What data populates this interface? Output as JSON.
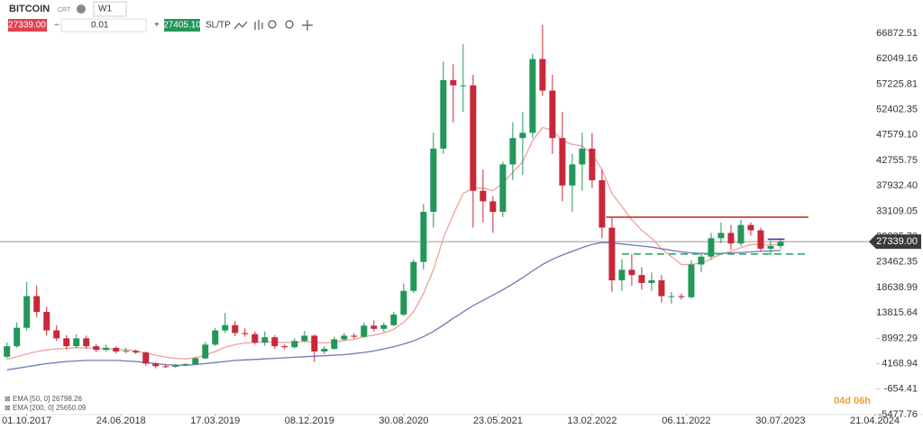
{
  "toolbar": {
    "symbol": "BITCOIN",
    "symbol_type": "CRT",
    "timeframe": "W1",
    "volume": "0.01",
    "ask": "27405.10",
    "sl_tp": "SL/TP"
  },
  "countdown": "04d 06h",
  "chart_data": {
    "type": "candlestick",
    "up_color": "#23965a",
    "down_color": "#c8283a",
    "open": [
      5500,
      7500,
      11000,
      17000,
      14000,
      10500,
      9000,
      7500,
      9000,
      7500,
      6800,
      7200,
      6500,
      6600,
      6300,
      4200,
      3700,
      3600,
      3900,
      4100,
      5200,
      7800,
      10500,
      11500,
      10000,
      9800,
      8200,
      9200,
      7500,
      7300,
      8500,
      9500,
      6500,
      7000,
      8800,
      9500,
      9300,
      11400,
      10800,
      11500,
      13500,
      18000,
      23500,
      33000,
      45000,
      58000,
      57000,
      57000,
      37000,
      35000,
      33000,
      42000,
      47000,
      48000,
      62000,
      56000,
      47000,
      38000,
      42000,
      45000,
      39000,
      30000,
      20000,
      22000,
      21000,
      19500,
      20000,
      17000,
      17000,
      16800,
      23000,
      24500,
      28000,
      29000,
      27000,
      30500,
      29500,
      26000,
      26500
    ],
    "high": [
      8200,
      12000,
      19700,
      19000,
      15000,
      11500,
      9600,
      9800,
      9500,
      7900,
      7800,
      7500,
      7200,
      6900,
      6500,
      4400,
      4100,
      4100,
      4300,
      5500,
      8300,
      11000,
      13800,
      12300,
      10900,
      10300,
      10300,
      9600,
      7800,
      9000,
      10400,
      9700,
      7500,
      9300,
      10000,
      10000,
      12000,
      12400,
      12000,
      14000,
      19400,
      24000,
      34500,
      48000,
      61500,
      61000,
      64800,
      59000,
      41000,
      36000,
      42500,
      50000,
      52000,
      63000,
      68500,
      59000,
      52000,
      44000,
      48000,
      48000,
      41000,
      32000,
      24000,
      25000,
      22500,
      21500,
      21000,
      17800,
      17500,
      23800,
      25200,
      29000,
      31000,
      30500,
      31500,
      31000,
      30000,
      27500,
      28000
    ],
    "low": [
      5200,
      7200,
      10500,
      13000,
      9500,
      8500,
      6900,
      7100,
      7000,
      6400,
      6500,
      6100,
      6200,
      6000,
      3800,
      3300,
      3400,
      3400,
      3700,
      4000,
      5000,
      7500,
      10000,
      9400,
      9300,
      7800,
      7600,
      7000,
      6900,
      7100,
      8300,
      4500,
      6000,
      6800,
      8500,
      8900,
      9100,
      10300,
      10200,
      11300,
      13200,
      17600,
      22000,
      30000,
      44000,
      50000,
      52000,
      30000,
      31000,
      29000,
      32000,
      39000,
      40000,
      47000,
      55000,
      44000,
      35000,
      33000,
      37000,
      37500,
      28000,
      17800,
      18000,
      19000,
      18200,
      18000,
      15800,
      15600,
      16300,
      16500,
      21500,
      24000,
      27000,
      25800,
      26500,
      28500,
      25500,
      24800,
      26000
    ],
    "close": [
      7500,
      11000,
      17000,
      14000,
      10500,
      9000,
      7500,
      9000,
      7500,
      6800,
      7200,
      6500,
      6600,
      6300,
      4200,
      3700,
      3600,
      3900,
      4100,
      5200,
      7800,
      10500,
      11500,
      10000,
      9800,
      8200,
      9200,
      7500,
      7300,
      8500,
      9500,
      6500,
      7000,
      8800,
      9500,
      9300,
      11400,
      10800,
      11500,
      13500,
      18000,
      23500,
      33000,
      45000,
      58000,
      57000,
      57000,
      37000,
      35000,
      33000,
      42000,
      47000,
      48000,
      62000,
      56000,
      47000,
      38000,
      42000,
      45000,
      39000,
      30000,
      20000,
      22000,
      21000,
      19500,
      20000,
      17000,
      17000,
      16800,
      23000,
      24500,
      28000,
      29000,
      27000,
      30500,
      29500,
      26000,
      26500,
      27339
    ],
    "series": [
      {
        "name": "EMA [50, 0]",
        "color": "#f0a098",
        "values": [
          5000,
          5500,
          6000,
          6500,
          6800,
          7000,
          7100,
          7200,
          7200,
          7100,
          7000,
          6900,
          6800,
          6600,
          6200,
          5800,
          5400,
          5200,
          5100,
          5300,
          5800,
          6500,
          7300,
          7800,
          8100,
          8200,
          8300,
          8300,
          8200,
          8200,
          8400,
          8200,
          8100,
          8300,
          8600,
          8800,
          9300,
          9600,
          10000,
          10700,
          12000,
          14000,
          17500,
          22000,
          28000,
          32500,
          36500,
          37500,
          37500,
          37000,
          38500,
          40500,
          42500,
          46500,
          49000,
          48500,
          46500,
          45800,
          45500,
          44000,
          41000,
          36500,
          34000,
          31500,
          29500,
          28000,
          26000,
          24500,
          23000,
          23000,
          23300,
          24000,
          25000,
          25500,
          26200,
          26800,
          26800,
          26700,
          26798.26
        ]
      },
      {
        "name": "EMA [200, 0]",
        "color": "#7078b8",
        "values": [
          3000,
          3300,
          3600,
          3900,
          4200,
          4400,
          4600,
          4700,
          4800,
          4800,
          4800,
          4800,
          4700,
          4600,
          4400,
          4200,
          4000,
          3900,
          3900,
          4000,
          4200,
          4400,
          4600,
          4800,
          4900,
          5000,
          5100,
          5200,
          5300,
          5400,
          5500,
          5600,
          5700,
          5800,
          5900,
          6100,
          6300,
          6600,
          7000,
          7400,
          7900,
          8500,
          9300,
          10300,
          11500,
          12800,
          14000,
          15200,
          16200,
          17200,
          18200,
          19300,
          20500,
          21800,
          23000,
          24000,
          24800,
          25500,
          26200,
          26800,
          27200,
          27100,
          26900,
          26700,
          26500,
          26300,
          26000,
          25700,
          25400,
          25200,
          25100,
          25100,
          25100,
          25200,
          25300,
          25400,
          25500,
          25600,
          25650.09
        ]
      }
    ],
    "hlines": [
      {
        "value": 32000,
        "from": 60.4,
        "to": 80.8,
        "color": "#c0392b",
        "dashed": false
      },
      {
        "value": 25000,
        "from": 62,
        "to": 80.8,
        "color": "#27ae60",
        "dashed": true
      },
      {
        "value": 27800,
        "from": 76.7,
        "to": 78.4,
        "color": "#3b3bb0",
        "dashed": false
      }
    ],
    "last_price": {
      "value": 27339,
      "label": "27339.00"
    },
    "xlim": [
      -0.7,
      88
    ],
    "xticks": [
      {
        "value": 2,
        "label": "01.10.2017"
      },
      {
        "value": 11.5,
        "label": "24.06.2018"
      },
      {
        "value": 21,
        "label": "17.03.2019"
      },
      {
        "value": 30.5,
        "label": "08.12.2019"
      },
      {
        "value": 40,
        "label": "30.08.2020"
      },
      {
        "value": 49.5,
        "label": "23.05.2021"
      },
      {
        "value": 59,
        "label": "13.02.2022"
      },
      {
        "value": 68.5,
        "label": "06.11.2022"
      },
      {
        "value": 78,
        "label": "30.07.2023"
      },
      {
        "value": 87.5,
        "label": "21.04.2024"
      }
    ],
    "ylim": [
      -5818,
      69780
    ],
    "yticks": [
      66872.51,
      62049.16,
      57225.81,
      52402.35,
      {
        "value": 47579.1,
        "label": "47579.10"
      },
      42755.75,
      {
        "value": 37932.4,
        "label": "37932.40"
      },
      33109.05,
      {
        "value": 28285.7,
        "label": "28285.70"
      },
      23462.35,
      18638.99,
      13815.64,
      8992.29,
      4168.94,
      -654.41,
      -5477.76
    ],
    "grid": false
  }
}
